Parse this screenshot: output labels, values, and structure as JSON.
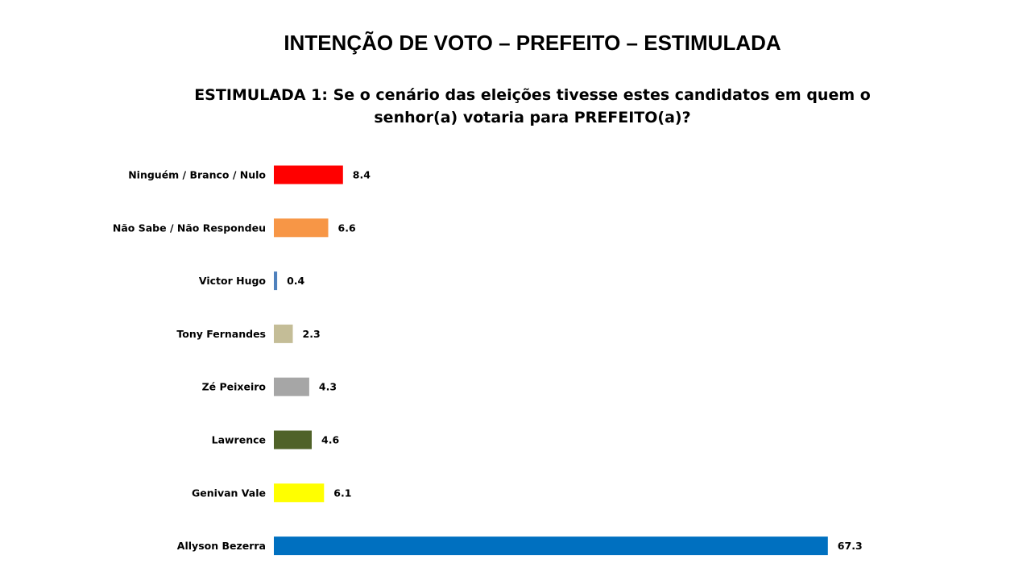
{
  "chart_data": {
    "type": "bar",
    "orientation": "horizontal",
    "title": "INTENÇÃO DE VOTO – PREFEITO – ESTIMULADA",
    "subtitle": "ESTIMULADA 1: Se o cenário das eleições tivesse estes candidatos em quem o senhor(a) votaria para PREFEITO(a)?",
    "categories": [
      "Ninguém / Branco / Nulo",
      "Não Sabe / Não Respondeu",
      "Victor Hugo",
      "Tony Fernandes",
      "Zé Peixeiro",
      "Lawrence",
      "Genivan Vale",
      "Allyson Bezerra"
    ],
    "values": [
      8.4,
      6.6,
      0.4,
      2.3,
      4.3,
      4.6,
      6.1,
      67.3
    ],
    "value_labels": [
      "8.4",
      "6.6",
      "0.4",
      "2.3",
      "4.3",
      "4.6",
      "6.1",
      "67.3"
    ],
    "colors": [
      "#FF0000",
      "#F79646",
      "#4F81BD",
      "#C4BD97",
      "#A6A6A6",
      "#4F6228",
      "#FFFF00",
      "#0070C0"
    ],
    "xlabel": "",
    "ylabel": "",
    "grid": false,
    "legend": "none"
  }
}
